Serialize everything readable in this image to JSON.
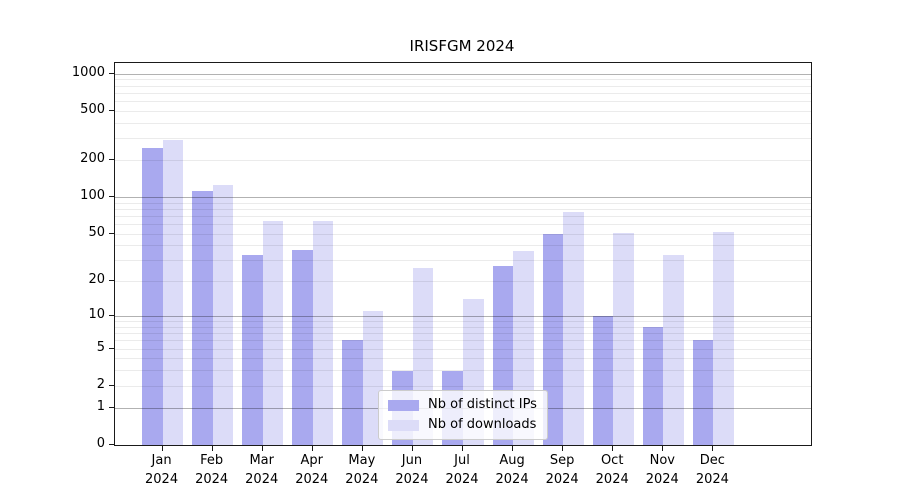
{
  "chart_data": {
    "type": "bar",
    "title": "IRISFGM 2024",
    "year_label": "2024",
    "categories": [
      "Jan",
      "Feb",
      "Mar",
      "Apr",
      "May",
      "Jun",
      "Jul",
      "Aug",
      "Sep",
      "Oct",
      "Nov",
      "Dec"
    ],
    "series": [
      {
        "name": "Nb of distinct IPs",
        "key": "distinct-ips",
        "color": "#a9a9ef",
        "values": [
          250,
          112,
          33,
          37,
          6,
          3,
          3,
          27,
          50,
          10,
          8,
          6
        ]
      },
      {
        "name": "Nb of downloads",
        "key": "downloads",
        "color": "#dcdcf8",
        "values": [
          290,
          125,
          63,
          64,
          11,
          26,
          14,
          36,
          75,
          51,
          33,
          52
        ]
      }
    ],
    "xlabel": "",
    "ylabel": "",
    "y_ticks": [
      0,
      1,
      2,
      5,
      10,
      20,
      50,
      100,
      200,
      500,
      1000
    ],
    "scale": "log1p",
    "ylim": [
      0,
      1220
    ],
    "grid": {
      "major_at": [
        1,
        10,
        100,
        1000
      ],
      "minor_on": true
    },
    "legend": {
      "position": "lower-center",
      "entries": [
        "Nb of distinct IPs",
        "Nb of downloads"
      ]
    }
  }
}
